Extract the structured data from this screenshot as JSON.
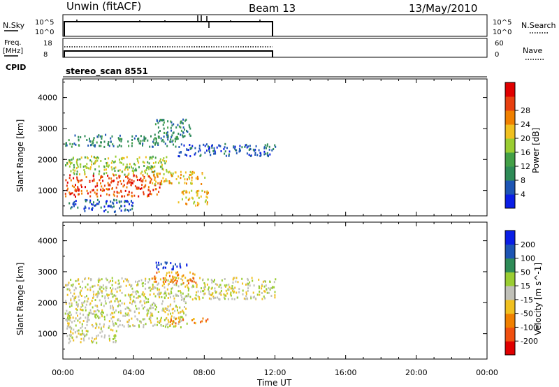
{
  "header": {
    "station": "Unwin (fitACF)",
    "beam": "Beam 13",
    "date": "13/May/2010"
  },
  "nsky_panel": {
    "left_label": "N.Sky",
    "right_label": "N.Search",
    "left_ticks": [
      "10^5",
      "10^0"
    ],
    "right_ticks": [
      "10^5",
      "10^0"
    ]
  },
  "freq_panel": {
    "left_label_1": "Freq.",
    "left_label_2": "[MHz]",
    "right_label": "Nave",
    "left_ticks": [
      "18",
      "8"
    ],
    "right_ticks": [
      "60",
      "0"
    ]
  },
  "cpid": {
    "label": "CPID",
    "value": "stereo_scan 8551"
  },
  "colors": {
    "power_scale": [
      "#0a1ee6",
      "#1d55b4",
      "#2e8b57",
      "#43a047",
      "#9acd32",
      "#f0c020",
      "#f08000",
      "#e84010",
      "#e00000"
    ],
    "velocity_scale": [
      "#e00000",
      "#f05010",
      "#f08000",
      "#f0c020",
      "#c0c0b8",
      "#9acd32",
      "#2e8b57",
      "#1d55b4",
      "#0a1ee6"
    ]
  },
  "chart_data": [
    {
      "type": "heatmap",
      "title": "",
      "quantity": "Power",
      "ylabel": "Slant Range [km]",
      "colorbar_label": "Power [dB]",
      "colorbar_ticks": [
        "4",
        "8",
        "12",
        "16",
        "20",
        "24",
        "28"
      ],
      "ylim": [
        180,
        4600
      ],
      "yticks": [
        "1000",
        "2000",
        "3000",
        "4000"
      ],
      "xlim": [
        0,
        24
      ],
      "regions": [
        {
          "t0": 0.1,
          "t1": 6.5,
          "r0": 2400,
          "r1": 2800,
          "level": 2
        },
        {
          "t0": 6.5,
          "t1": 12.0,
          "r0": 2100,
          "r1": 2500,
          "level": 1
        },
        {
          "t0": 0.1,
          "t1": 6.0,
          "r0": 1500,
          "r1": 2100,
          "level": 4
        },
        {
          "t0": 0.1,
          "t1": 5.5,
          "r0": 800,
          "r1": 1500,
          "level": 7
        },
        {
          "t0": 5.0,
          "t1": 8.0,
          "r0": 1200,
          "r1": 1600,
          "level": 5
        },
        {
          "t0": 5.2,
          "t1": 7.2,
          "r0": 2700,
          "r1": 3300,
          "level": 2
        },
        {
          "t0": 0.2,
          "t1": 4.0,
          "r0": 300,
          "r1": 700,
          "level": 1
        },
        {
          "t0": 6.5,
          "t1": 8.2,
          "r0": 500,
          "r1": 1000,
          "level": 5
        }
      ]
    },
    {
      "type": "heatmap",
      "title": "",
      "quantity": "Velocity",
      "ylabel": "Slant Range [km]",
      "xlabel": "Time UT",
      "colorbar_label": "Velocity [m s^-1]",
      "colorbar_ticks": [
        "-200",
        "-100",
        "-50",
        "-15",
        "15",
        "50",
        "100",
        "200"
      ],
      "ylim": [
        180,
        4600
      ],
      "yticks": [
        "1000",
        "2000",
        "3000",
        "4000"
      ],
      "xlim": [
        0,
        24
      ],
      "xticks": [
        "00:00",
        "04:00",
        "08:00",
        "12:00",
        "16:00",
        "20:00",
        "00:00"
      ],
      "regions": [
        {
          "t0": 0.1,
          "t1": 12.0,
          "r0": 2100,
          "r1": 2800,
          "level": 4
        },
        {
          "t0": 0.1,
          "t1": 7.0,
          "r0": 1200,
          "r1": 2100,
          "level": 4
        },
        {
          "t0": 6.0,
          "t1": 8.2,
          "r0": 1300,
          "r1": 1500,
          "level": 2
        },
        {
          "t0": 0.2,
          "t1": 3.0,
          "r0": 700,
          "r1": 1200,
          "level": 4
        },
        {
          "t0": 5.2,
          "t1": 7.0,
          "r0": 3050,
          "r1": 3300,
          "level": 8
        },
        {
          "t0": 5.0,
          "t1": 7.5,
          "r0": 2600,
          "r1": 3000,
          "level": 2
        }
      ]
    }
  ]
}
